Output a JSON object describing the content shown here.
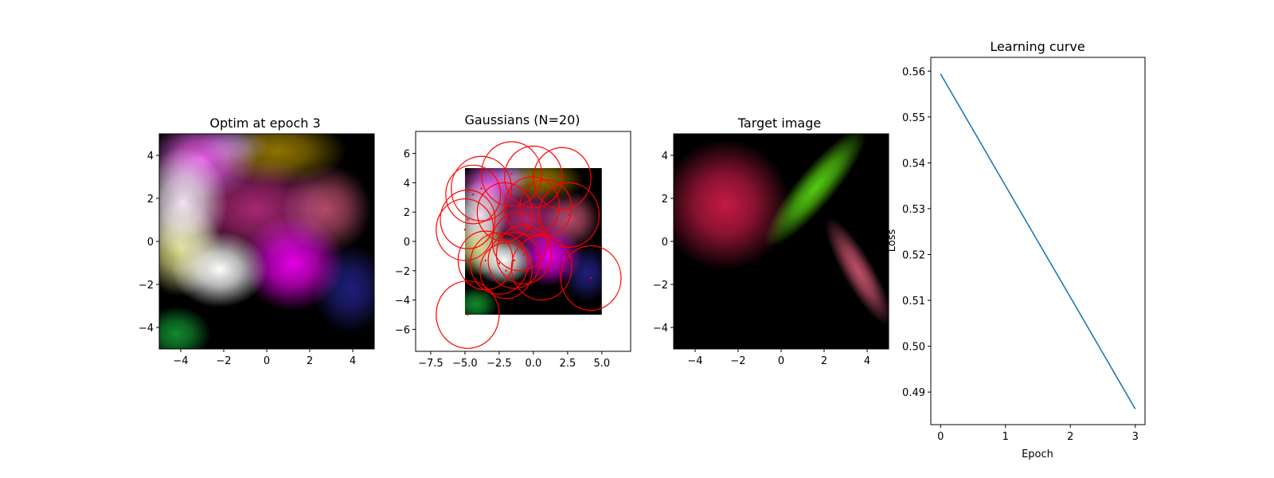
{
  "chart_data": [
    {
      "type": "heatmap",
      "title": "Optim at epoch 3",
      "xlim": [
        -5,
        5
      ],
      "ylim": [
        -5,
        5
      ],
      "xticks": [
        -4,
        -2,
        0,
        2,
        4
      ],
      "yticks": [
        -4,
        -2,
        0,
        2,
        4
      ],
      "xlabel": "",
      "ylabel": "",
      "blobs": [
        {
          "x": -2.2,
          "y": -1.3,
          "sx": 1.4,
          "sy": 1.1,
          "color": "#ffffff",
          "alpha": 1.0
        },
        {
          "x": -3.9,
          "y": 1.8,
          "sx": 1.3,
          "sy": 1.6,
          "color": "#ffeeff",
          "alpha": 0.95
        },
        {
          "x": -4.0,
          "y": -0.3,
          "sx": 1.2,
          "sy": 1.4,
          "color": "#ffff99",
          "alpha": 0.85
        },
        {
          "x": -3.0,
          "y": 3.8,
          "sx": 1.6,
          "sy": 1.2,
          "color": "#ff66ff",
          "alpha": 0.9
        },
        {
          "x": 1.2,
          "y": -1.0,
          "sx": 1.5,
          "sy": 1.4,
          "color": "#ff00ff",
          "alpha": 0.9
        },
        {
          "x": -0.5,
          "y": 1.5,
          "sx": 2.2,
          "sy": 1.5,
          "color": "#dd3399",
          "alpha": 0.75
        },
        {
          "x": 0.5,
          "y": 4.2,
          "sx": 2.0,
          "sy": 1.0,
          "color": "#aa8800",
          "alpha": 0.85
        },
        {
          "x": 2.8,
          "y": 1.5,
          "sx": 1.3,
          "sy": 1.3,
          "color": "#cc5577",
          "alpha": 0.85
        },
        {
          "x": 3.9,
          "y": -2.2,
          "sx": 1.1,
          "sy": 1.3,
          "color": "#222288",
          "alpha": 0.9
        },
        {
          "x": -4.2,
          "y": -4.3,
          "sx": 1.0,
          "sy": 0.8,
          "color": "#119933",
          "alpha": 0.9
        },
        {
          "x": -1.5,
          "y": 4.5,
          "sx": 1.0,
          "sy": 0.6,
          "color": "#6655cc",
          "alpha": 0.6
        }
      ]
    },
    {
      "type": "scatter",
      "title": "Gaussians (N=20)",
      "xlim": [
        -8.6,
        7.1
      ],
      "ylim": [
        -7.5,
        7.5
      ],
      "xticks": [
        "-7.5",
        "-5.0",
        "-2.5",
        "0.0",
        "2.5",
        "5.0"
      ],
      "xtick_values": [
        -7.5,
        -5.0,
        -2.5,
        0.0,
        2.5,
        5.0
      ],
      "yticks": [
        -6,
        -4,
        -2,
        0,
        2,
        4,
        6
      ],
      "xlabel": "",
      "ylabel": "",
      "image_extent": [
        -5,
        5,
        -5,
        5
      ],
      "circle_color": "#ff0000",
      "circles": [
        {
          "x": -3.8,
          "y": 3.6,
          "r": 2.2
        },
        {
          "x": -4.4,
          "y": 3.2,
          "r": 2.0
        },
        {
          "x": -1.6,
          "y": 4.6,
          "r": 2.2
        },
        {
          "x": 0.0,
          "y": 4.4,
          "r": 2.1
        },
        {
          "x": 2.1,
          "y": 4.3,
          "r": 2.1
        },
        {
          "x": -4.8,
          "y": 1.5,
          "r": 2.0
        },
        {
          "x": -5.0,
          "y": 0.8,
          "r": 2.1
        },
        {
          "x": -2.1,
          "y": 2.0,
          "r": 2.0
        },
        {
          "x": -0.1,
          "y": 2.4,
          "r": 2.0
        },
        {
          "x": 2.6,
          "y": 1.8,
          "r": 2.2
        },
        {
          "x": 0.9,
          "y": 2.3,
          "r": 1.9
        },
        {
          "x": -3.5,
          "y": -1.3,
          "r": 2.0
        },
        {
          "x": -2.5,
          "y": -1.5,
          "r": 2.1
        },
        {
          "x": -1.4,
          "y": -1.3,
          "r": 1.9
        },
        {
          "x": -0.7,
          "y": -0.9,
          "r": 2.0
        },
        {
          "x": 0.6,
          "y": -1.8,
          "r": 2.2
        },
        {
          "x": -2.0,
          "y": -2.0,
          "r": 1.9
        },
        {
          "x": 4.2,
          "y": -2.5,
          "r": 2.2
        },
        {
          "x": -4.8,
          "y": -5.0,
          "r": 2.3
        },
        {
          "x": -1.0,
          "y": 0.0,
          "r": 2.0
        }
      ]
    },
    {
      "type": "heatmap",
      "title": "Target image",
      "xlim": [
        -5,
        5
      ],
      "ylim": [
        -5,
        5
      ],
      "xticks": [
        -4,
        -2,
        0,
        2,
        4
      ],
      "yticks": [
        -4,
        -2,
        0,
        2,
        4
      ],
      "xlabel": "",
      "ylabel": "",
      "blobs": [
        {
          "x": -2.6,
          "y": 1.7,
          "sx": 1.9,
          "sy": 1.9,
          "color": "#c41a44",
          "alpha": 1.0,
          "angle": 0
        },
        {
          "x": 1.6,
          "y": 2.5,
          "sx": 2.2,
          "sy": 0.55,
          "color": "#55cc11",
          "alpha": 1.0,
          "angle": 50
        },
        {
          "x": 3.6,
          "y": -1.4,
          "sx": 1.8,
          "sy": 0.45,
          "color": "#c0506a",
          "alpha": 1.0,
          "angle": -60
        }
      ]
    },
    {
      "type": "line",
      "title": "Learning curve",
      "xlabel": "Epoch",
      "ylabel": "Loss",
      "xlim": [
        -0.15,
        3.15
      ],
      "ylim": [
        0.4829,
        0.563
      ],
      "xticks": [
        0,
        1,
        2,
        3
      ],
      "yticks": [
        "0.49",
        "0.50",
        "0.51",
        "0.52",
        "0.53",
        "0.54",
        "0.55",
        "0.56"
      ],
      "ytick_values": [
        0.49,
        0.5,
        0.51,
        0.52,
        0.53,
        0.54,
        0.55,
        0.56
      ],
      "line_color": "#1f77b4",
      "x": [
        0,
        1,
        2,
        3
      ],
      "y": [
        0.5594,
        0.535,
        0.5107,
        0.4863
      ]
    }
  ]
}
